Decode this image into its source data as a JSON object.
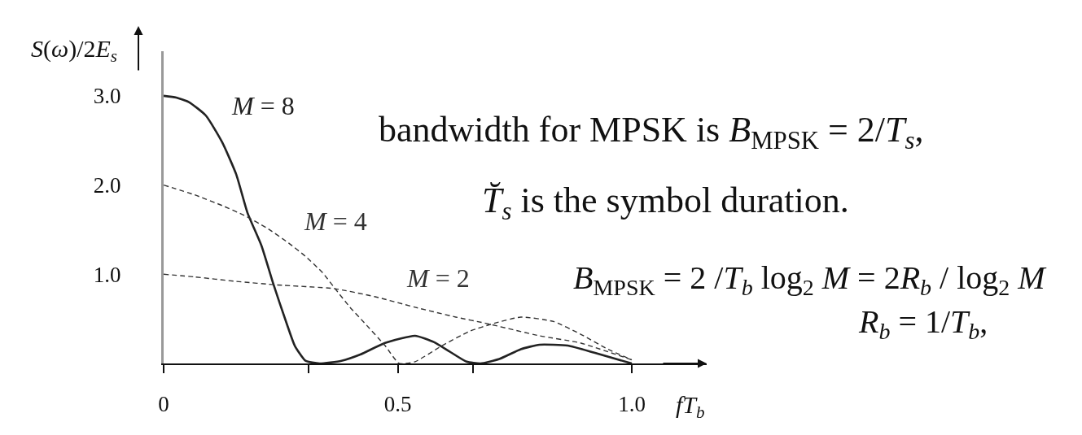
{
  "chart_data": {
    "type": "line",
    "ylabel": "S(ω)/2E$_{s}$",
    "xlabel": "fT$_{b}$",
    "xlim": [
      0,
      1.16
    ],
    "ylim": [
      0,
      3.5
    ],
    "xticks": [
      0,
      {
        "value": 0.31,
        "label": null
      },
      0.5,
      {
        "value": 0.66,
        "label": null
      },
      {
        "value": 1,
        "label": "1.0"
      }
    ],
    "yticks": [
      {
        "value": 1,
        "label": "1.0"
      },
      {
        "value": 2,
        "label": "2.0"
      },
      {
        "value": 3,
        "label": "3.0"
      }
    ],
    "series": [
      {
        "name": "M = 8",
        "color": "#222222",
        "line_style": "solid",
        "x": [
          0,
          0.027,
          0.054,
          0.09,
          0.125,
          0.155,
          0.179,
          0.209,
          0.235,
          0.262,
          0.28,
          0.303,
          0.333,
          0.38,
          0.42,
          0.473,
          0.537,
          0.577,
          0.612,
          0.647,
          0.677,
          0.717,
          0.763,
          0.803,
          0.863,
          0.92,
          1.0
        ],
        "values": [
          3.0,
          2.98,
          2.93,
          2.78,
          2.48,
          2.12,
          1.69,
          1.32,
          0.88,
          0.46,
          0.2,
          0.03,
          0,
          0.03,
          0.1,
          0.23,
          0.31,
          0.24,
          0.13,
          0.02,
          0,
          0.05,
          0.16,
          0.21,
          0.2,
          0.12,
          0
        ]
      },
      {
        "name": "M = 4",
        "color": "#333333",
        "line_style": "dashed",
        "x": [
          0,
          0.066,
          0.125,
          0.172,
          0.22,
          0.267,
          0.303,
          0.339,
          0.369,
          0.398,
          0.428,
          0.473,
          0.503,
          0.537,
          0.595,
          0.653,
          0.706,
          0.763,
          0.833,
          0.89,
          0.949,
          1.0
        ],
        "values": [
          2.0,
          1.89,
          1.77,
          1.66,
          1.52,
          1.35,
          1.2,
          1.02,
          0.82,
          0.63,
          0.46,
          0.2,
          0,
          0.02,
          0.2,
          0.36,
          0.45,
          0.52,
          0.47,
          0.33,
          0.16,
          0.04
        ]
      },
      {
        "name": "M = 2",
        "color": "#333333",
        "line_style": "dashed",
        "x": [
          0,
          0.066,
          0.155,
          0.243,
          0.363,
          0.45,
          0.537,
          0.624,
          0.688,
          0.803,
          0.89,
          1.0
        ],
        "values": [
          1.0,
          0.97,
          0.92,
          0.88,
          0.84,
          0.75,
          0.63,
          0.52,
          0.45,
          0.31,
          0.23,
          0.04
        ]
      }
    ],
    "annotations": [
      "bandwidth for MPSK is B$_{MPSK}$ = 2/T$_{s}$,",
      "T̆$_{s}$ is the symbol duration.",
      "B$_{MPSK}$ = 2 /T$_{b}$ log$_{2}$ M = 2R$_{b}$ / log$_{2}$ M",
      "R$_{b}$ = 1/T$_{b}$,"
    ]
  }
}
